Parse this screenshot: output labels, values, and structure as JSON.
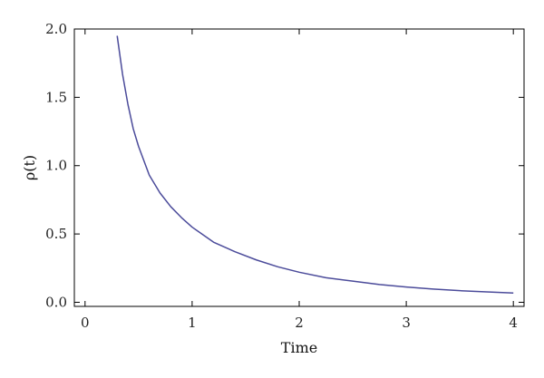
{
  "chart_data": {
    "type": "line",
    "title": "",
    "xlabel": "Time",
    "ylabel": "ρ(t)",
    "xlim": [
      -0.1,
      4.1
    ],
    "ylim": [
      -0.03,
      2.0
    ],
    "x_ticks": [
      0,
      1,
      2,
      3,
      4
    ],
    "x_tick_labels": [
      "0",
      "1",
      "2",
      "3",
      "4"
    ],
    "y_ticks": [
      0.0,
      0.5,
      1.0,
      1.5,
      2.0
    ],
    "y_tick_labels": [
      "0.0",
      "0.5",
      "1.0",
      "1.5",
      "2.0"
    ],
    "grid": false,
    "series": [
      {
        "color": "#4b4b9a",
        "x": [
          0.3,
          0.35,
          0.4,
          0.45,
          0.5,
          0.6,
          0.7,
          0.8,
          0.9,
          1.0,
          1.2,
          1.4,
          1.6,
          1.8,
          2.0,
          2.25,
          2.5,
          2.75,
          3.0,
          3.25,
          3.5,
          3.75,
          4.0
        ],
        "y": [
          1.95,
          1.67,
          1.45,
          1.27,
          1.14,
          0.93,
          0.8,
          0.7,
          0.62,
          0.55,
          0.44,
          0.37,
          0.31,
          0.26,
          0.22,
          0.18,
          0.155,
          0.13,
          0.112,
          0.097,
          0.085,
          0.076,
          0.068
        ]
      }
    ]
  }
}
